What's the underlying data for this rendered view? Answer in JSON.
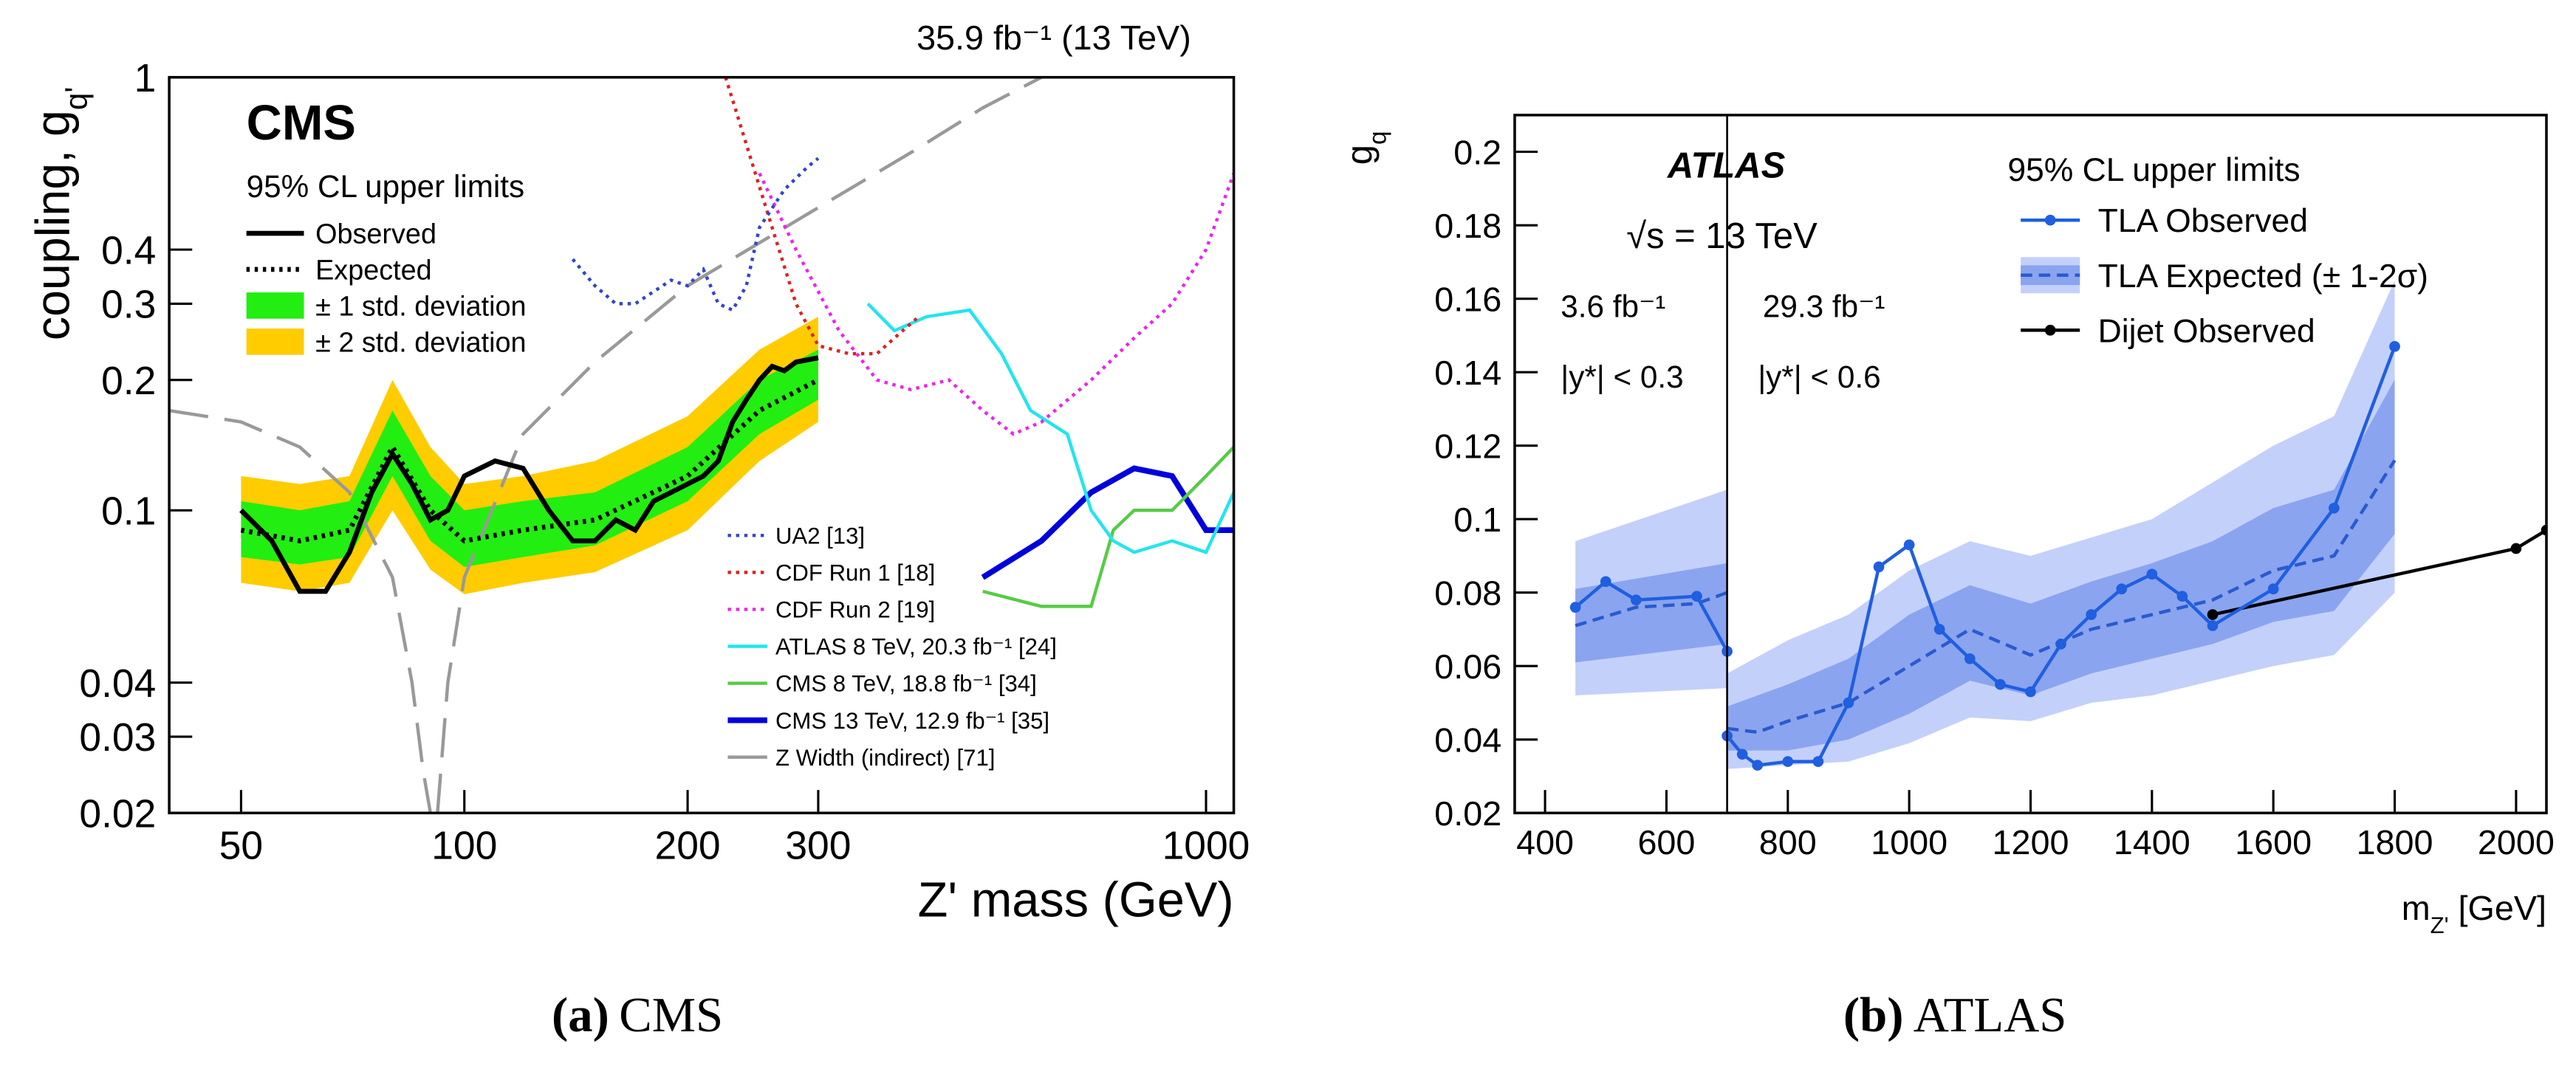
{
  "chart_data": [
    {
      "type": "line",
      "xlog": true,
      "ylog": true,
      "lumi": "35.9 fb⁻¹ (13 TeV)",
      "label": "CMS",
      "subtitle": "95% CL upper limits",
      "ylabel": "coupling, g",
      "ylabel_sub": "q'",
      "xlabel": "Z' mass (GeV)",
      "caption_label": "(a)",
      "caption": "CMS",
      "xlim": [
        40,
        1090
      ],
      "ylim": [
        0.02,
        1
      ],
      "xticks": [
        50,
        100,
        200,
        300,
        1000
      ],
      "yticks": [
        0.02,
        0.03,
        0.04,
        0.1,
        0.2,
        0.3,
        0.4,
        1
      ],
      "series": [
        {
          "name": "Observed",
          "kind": "line",
          "dash": "solid",
          "width": 3,
          "color": "#000000",
          "x": [
            50,
            55,
            60,
            65,
            70,
            75,
            80,
            85,
            90,
            95,
            100,
            110,
            120,
            130,
            140,
            150,
            160,
            170,
            180,
            190,
            200,
            210,
            220,
            230,
            240,
            250,
            260,
            270,
            280,
            300
          ],
          "values": [
            0.1,
            0.085,
            0.065,
            0.065,
            0.08,
            0.11,
            0.135,
            0.115,
            0.095,
            0.1,
            0.12,
            0.13,
            0.125,
            0.1,
            0.085,
            0.085,
            0.095,
            0.09,
            0.105,
            0.11,
            0.115,
            0.12,
            0.13,
            0.16,
            0.18,
            0.2,
            0.215,
            0.21,
            0.22,
            0.225
          ]
        },
        {
          "name": "Expected",
          "kind": "line",
          "dash": "dotted",
          "width": 3,
          "color": "#000000",
          "x": [
            50,
            60,
            70,
            80,
            90,
            100,
            120,
            150,
            200,
            250,
            300
          ],
          "values": [
            0.09,
            0.085,
            0.09,
            0.14,
            0.1,
            0.085,
            0.09,
            0.095,
            0.12,
            0.17,
            0.2
          ]
        },
        {
          "name": "± 1 std. deviation",
          "kind": "band",
          "color": "#22ee11",
          "x": [
            50,
            60,
            70,
            80,
            90,
            100,
            120,
            150,
            200,
            250,
            300
          ],
          "values": [
            [
              0.078,
              0.105
            ],
            [
              0.075,
              0.1
            ],
            [
              0.078,
              0.105
            ],
            [
              0.12,
              0.17
            ],
            [
              0.085,
              0.12
            ],
            [
              0.074,
              0.1
            ],
            [
              0.078,
              0.105
            ],
            [
              0.083,
              0.11
            ],
            [
              0.105,
              0.14
            ],
            [
              0.15,
              0.2
            ],
            [
              0.18,
              0.235
            ]
          ]
        },
        {
          "name": "± 2 std. deviation",
          "kind": "band",
          "color": "#ffcc00",
          "x": [
            50,
            60,
            70,
            80,
            90,
            100,
            120,
            150,
            200,
            250,
            300
          ],
          "values": [
            [
              0.068,
              0.12
            ],
            [
              0.065,
              0.115
            ],
            [
              0.068,
              0.12
            ],
            [
              0.1,
              0.2
            ],
            [
              0.073,
              0.14
            ],
            [
              0.064,
              0.115
            ],
            [
              0.068,
              0.12
            ],
            [
              0.072,
              0.13
            ],
            [
              0.09,
              0.165
            ],
            [
              0.13,
              0.235
            ],
            [
              0.16,
              0.28
            ]
          ]
        },
        {
          "name": "UA2 [13]",
          "kind": "line",
          "dash": "dotted",
          "width": 2,
          "color": "#3344cc",
          "x": [
            140,
            150,
            160,
            170,
            180,
            190,
            200,
            210,
            220,
            230,
            240,
            250,
            270,
            290,
            300
          ],
          "values": [
            0.38,
            0.33,
            0.3,
            0.3,
            0.32,
            0.34,
            0.33,
            0.36,
            0.3,
            0.29,
            0.33,
            0.45,
            0.55,
            0.62,
            0.65
          ]
        },
        {
          "name": "CDF Run 1 [18]",
          "kind": "line",
          "dash": "dotted",
          "width": 2,
          "color": "#dd2222",
          "x": [
            225,
            240,
            260,
            280,
            300,
            330,
            360,
            390,
            410
          ],
          "values": [
            1.0,
            0.7,
            0.45,
            0.3,
            0.24,
            0.23,
            0.23,
            0.26,
            0.28
          ]
        },
        {
          "name": "CDF Run 2 [19]",
          "kind": "line",
          "dash": "dotted",
          "width": 2,
          "color": "#ee22ee",
          "x": [
            250,
            280,
            320,
            360,
            400,
            450,
            500,
            550,
            600,
            700,
            800,
            900,
            1000,
            1090
          ],
          "values": [
            0.6,
            0.4,
            0.26,
            0.2,
            0.19,
            0.2,
            0.17,
            0.15,
            0.16,
            0.2,
            0.25,
            0.3,
            0.4,
            0.6
          ]
        },
        {
          "name": "ATLAS 8 TeV, 20.3 fb⁻¹ [24]",
          "kind": "line",
          "dash": "solid",
          "width": 2,
          "color": "#22e5ee",
          "x": [
            350,
            380,
            420,
            480,
            530,
            580,
            650,
            700,
            750,
            800,
            900,
            1000,
            1090
          ],
          "values": [
            0.3,
            0.26,
            0.28,
            0.29,
            0.23,
            0.17,
            0.15,
            0.1,
            0.085,
            0.08,
            0.085,
            0.08,
            0.11
          ]
        },
        {
          "name": "CMS 8 TeV, 18.8 fb⁻¹ [34]",
          "kind": "line",
          "dash": "solid",
          "width": 2,
          "color": "#55cc44",
          "x": [
            500,
            600,
            700,
            750,
            800,
            900,
            1000,
            1090
          ],
          "values": [
            0.065,
            0.06,
            0.06,
            0.09,
            0.1,
            0.1,
            0.12,
            0.14
          ]
        },
        {
          "name": "CMS 13 TeV, 12.9 fb⁻¹ [35]",
          "kind": "line",
          "dash": "solid",
          "width": 3.5,
          "color": "#0000dd",
          "x": [
            500,
            600,
            700,
            800,
            900,
            1000,
            1090
          ],
          "values": [
            0.07,
            0.085,
            0.11,
            0.125,
            0.12,
            0.09,
            0.09
          ]
        },
        {
          "name": "Z Width (indirect) [71]",
          "kind": "line",
          "dash": "longdash",
          "width": 2,
          "color": "#999999",
          "x": [
            40,
            50,
            60,
            70,
            80,
            85,
            88,
            90,
            null,
            92,
            95,
            100,
            120,
            150,
            200,
            300,
            400,
            500,
            600
          ],
          "values": [
            0.17,
            0.16,
            0.14,
            0.11,
            0.07,
            0.04,
            0.025,
            0.02,
            null,
            0.02,
            0.04,
            0.07,
            0.15,
            0.22,
            0.33,
            0.5,
            0.67,
            0.85,
            1.0
          ]
        }
      ]
    },
    {
      "type": "line",
      "xlog": false,
      "ylog": false,
      "label": "ATLAS",
      "subtitle": "95% CL upper limits",
      "energy": "√s = 13 TeV",
      "lumi_left": "3.6 fb⁻¹",
      "lumi_right": "29.3 fb⁻¹",
      "cut_left": "|y*| < 0.3",
      "cut_right": "|y*| < 0.6",
      "divider": 700,
      "ylabel": "g",
      "ylabel_sub": "q",
      "xlabel": "m",
      "xlabel_sub": "Z'",
      "xlabel_rest": " [GeV]",
      "caption_label": "(b)",
      "caption": "ATLAS",
      "xlim": [
        350,
        2050
      ],
      "ylim": [
        0.02,
        0.21
      ],
      "xticks": [
        400,
        600,
        800,
        1000,
        1200,
        1400,
        1600,
        1800,
        2000
      ],
      "yticks": [
        0.02,
        0.04,
        0.06,
        0.08,
        0.1,
        0.12,
        0.14,
        0.16,
        0.18,
        0.2
      ],
      "series": [
        {
          "name": "TLA Observed",
          "kind": "line",
          "dash": "solid",
          "width": 2,
          "markers": true,
          "color": "#1f5fe0",
          "x": [
            450,
            500,
            550,
            650,
            700,
            null,
            700,
            725,
            750,
            800,
            850,
            900,
            950,
            1000,
            1050,
            1100,
            1150,
            1200,
            1250,
            1300,
            1350,
            1400,
            1450,
            1500,
            1600,
            1700,
            1800
          ],
          "values": [
            0.076,
            0.083,
            0.078,
            0.079,
            0.064,
            null,
            0.041,
            0.036,
            0.033,
            0.034,
            0.034,
            0.05,
            0.087,
            0.093,
            0.07,
            0.062,
            0.055,
            0.053,
            0.066,
            0.074,
            0.081,
            0.085,
            0.079,
            0.071,
            0.081,
            0.103,
            0.147
          ]
        },
        {
          "name": "TLA Expected (± 1-2σ)",
          "kind": "line",
          "dash": "dashed",
          "width": 2,
          "color": "#2a5ad0",
          "x": [
            450,
            550,
            650,
            700,
            null,
            700,
            750,
            800,
            900,
            1000,
            1100,
            1200,
            1300,
            1400,
            1500,
            1600,
            1700,
            1800
          ],
          "values": [
            0.071,
            0.076,
            0.077,
            0.08,
            null,
            0.043,
            0.042,
            0.045,
            0.05,
            0.06,
            0.07,
            0.063,
            0.07,
            0.074,
            0.078,
            0.086,
            0.09,
            0.116
          ]
        },
        {
          "kind": "band",
          "color": "#8aa4ef",
          "x": [
            450,
            700,
            null,
            700,
            800,
            900,
            1000,
            1100,
            1200,
            1300,
            1400,
            1500,
            1600,
            1700,
            1800
          ],
          "values": [
            [
              0.061,
              0.081
            ],
            [
              0.066,
              0.088
            ],
            null,
            [
              0.037,
              0.049
            ],
            [
              0.037,
              0.055
            ],
            [
              0.04,
              0.062
            ],
            [
              0.047,
              0.074
            ],
            [
              0.056,
              0.082
            ],
            [
              0.052,
              0.077
            ],
            [
              0.058,
              0.083
            ],
            [
              0.062,
              0.088
            ],
            [
              0.066,
              0.094
            ],
            [
              0.072,
              0.103
            ],
            [
              0.075,
              0.108
            ],
            [
              0.096,
              0.138
            ]
          ]
        },
        {
          "kind": "band",
          "color": "#c3d0fa",
          "x": [
            450,
            700,
            null,
            700,
            800,
            900,
            1000,
            1100,
            1200,
            1300,
            1400,
            1500,
            1600,
            1700,
            1800
          ],
          "values": [
            [
              0.052,
              0.094
            ],
            [
              0.054,
              0.108
            ],
            null,
            [
              0.032,
              0.058
            ],
            [
              0.033,
              0.067
            ],
            [
              0.034,
              0.074
            ],
            [
              0.039,
              0.086
            ],
            [
              0.046,
              0.094
            ],
            [
              0.045,
              0.09
            ],
            [
              0.05,
              0.095
            ],
            [
              0.052,
              0.1
            ],
            [
              0.056,
              0.11
            ],
            [
              0.06,
              0.12
            ],
            [
              0.063,
              0.128
            ],
            [
              0.08,
              0.165
            ]
          ]
        },
        {
          "name": "Dijet Observed",
          "kind": "line",
          "dash": "solid",
          "width": 2,
          "markers": true,
          "color": "#000000",
          "x": [
            1500,
            2000,
            2050
          ],
          "values": [
            0.074,
            0.092,
            0.097
          ]
        }
      ]
    }
  ]
}
